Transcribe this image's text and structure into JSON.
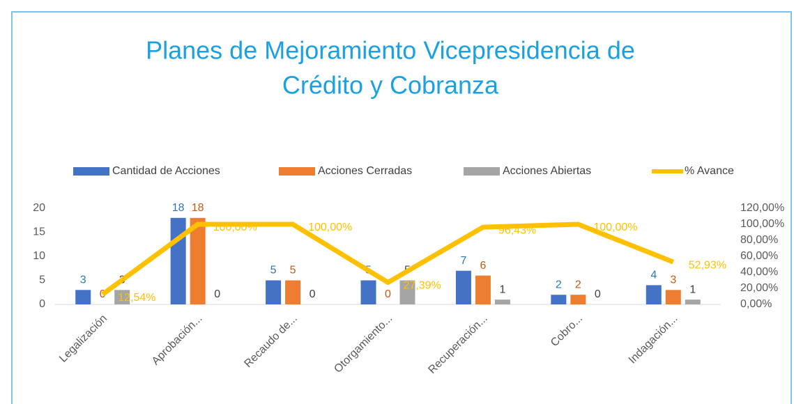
{
  "chart_data": {
    "type": "bar",
    "title_lines": [
      "Planes de Mejoramiento Vicepresidencia de",
      "Crédito y Cobranza"
    ],
    "categories": [
      "Legalización",
      "Aprobación...",
      "Recaudo de...",
      "Otorgamiento...",
      "Recuperación...",
      "Cobro...",
      "Indagación..."
    ],
    "series": [
      {
        "name": "Cantidad de Acciones",
        "type": "bar",
        "color": "#4472C4",
        "label_color": "#2E75B6",
        "values": [
          3,
          18,
          5,
          5,
          7,
          2,
          4
        ]
      },
      {
        "name": "Acciones Cerradas",
        "type": "bar",
        "color": "#ED7D31",
        "label_color": "#C55A11",
        "values": [
          0,
          18,
          5,
          0,
          6,
          2,
          3
        ]
      },
      {
        "name": "Acciones Abiertas",
        "type": "bar",
        "color": "#A5A5A5",
        "label_color": "#404040",
        "values": [
          3,
          0,
          0,
          5,
          1,
          0,
          1
        ]
      },
      {
        "name": "% Avance",
        "type": "line",
        "axis": "y2",
        "color": "#FFC000",
        "label_color": "#FFC000",
        "values": [
          12.54,
          100,
          100,
          27.39,
          96.43,
          100,
          52.93
        ],
        "value_labels": [
          "12,54%",
          "100,00%",
          "100,00%",
          "27,39%",
          "96,43%",
          "100,00%",
          "52,93%"
        ]
      }
    ],
    "ylim": [
      0,
      20
    ],
    "yticks": [
      0,
      5,
      10,
      15,
      20
    ],
    "y2lim": [
      0,
      120
    ],
    "y2ticks": [
      {
        "value": 0,
        "label": "0,00%"
      },
      {
        "value": 20,
        "label": "20,00%"
      },
      {
        "value": 40,
        "label": "40,00%"
      },
      {
        "value": 60,
        "label": "60,00%"
      },
      {
        "value": 80,
        "label": "80,00%"
      },
      {
        "value": 100,
        "label": "100,00%"
      },
      {
        "value": 120,
        "label": "120,00%"
      }
    ],
    "legend": "top"
  }
}
